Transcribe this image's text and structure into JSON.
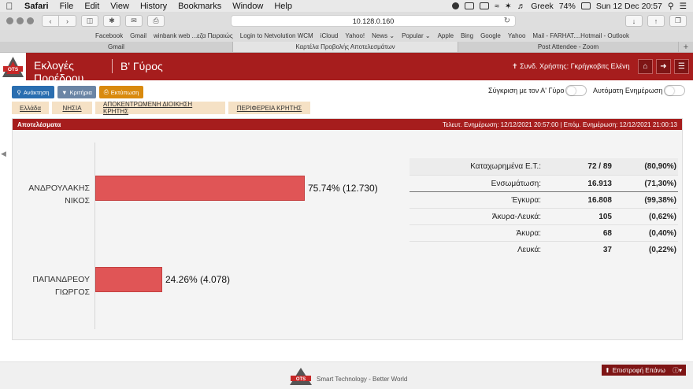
{
  "menubar": {
    "app_name": "Safari",
    "items": [
      "File",
      "Edit",
      "View",
      "History",
      "Bookmarks",
      "Window",
      "Help"
    ],
    "input_source": "Greek",
    "battery": "74%",
    "clock": "Sun 12 Dec  20:57"
  },
  "browser": {
    "url": "10.128.0.160",
    "bookmarks": [
      "Facebook",
      "Gmail",
      "winbank web ...εζα Πειραιώς",
      "Login to Netvolution WCM",
      "iCloud",
      "Yahoo!",
      "News ⌄",
      "Popular ⌄",
      "Apple",
      "Bing",
      "Google",
      "Yahoo",
      "Mail - FARHAT....Hotmail - Outlook"
    ],
    "tabs": [
      {
        "label": "Gmail",
        "active": false
      },
      {
        "label": "Καρτέλα Προβολής Αποτελεσμάτων",
        "active": true
      },
      {
        "label": "Post Attendee - Zoom",
        "active": false
      }
    ]
  },
  "header": {
    "logo_text": "OTS",
    "title": "Εκλογές Προέδρου",
    "round": "Β' Γύρος",
    "user": "Συνδ. Χρήστης: Γκρήγκοβιτς Ελένη",
    "colors": {
      "brand": "#a61d1d",
      "dark": "#7e1515"
    }
  },
  "toolbar": {
    "search_label": "Ανάκτηση",
    "criteria_label": "Κριτήρια",
    "print_label": "Εκτύπωση",
    "compare_label": "Σύγκριση με τον Α' Γύρο",
    "auto_update_label": "Αυτόματη Ενημέρωση"
  },
  "regions": [
    "Ελλάδα",
    "ΝΗΣΙΑ",
    "ΑΠΟΚΕΝΤΡΩΜΕΝΗ ΔΙΟΙΚΗΣΗ ΚΡΗΤΗΣ",
    "ΠΕΡΙΦΕΡΕΙΑ ΚΡΗΤΗΣ"
  ],
  "results": {
    "title": "Αποτελέσματα",
    "last_update": "Τελευτ. Ενημέρωση: 12/12/2021 20:57:00",
    "next_update": "Επόμ. Ενημέρωση: 12/12/2021 21:00:13",
    "separator": "|"
  },
  "chart_data": {
    "type": "bar",
    "orientation": "horizontal",
    "categories": [
      "ΑΝΔΡΟΥΛΑΚΗΣ ΝΙΚΟΣ",
      "ΠΑΠΑΝΔΡΕΟΥ ΓΙΩΡΓΟΣ"
    ],
    "values": [
      75.74,
      24.26
    ],
    "votes": [
      12730,
      4078
    ],
    "data_labels": [
      "75.74% (12.730)",
      "24.26% (4.078)"
    ],
    "xlim": [
      0,
      100
    ],
    "bar_color": "#e05556"
  },
  "stats": [
    {
      "label": "Καταχωρημένα Ε.Τ.:",
      "value": "72 / 89",
      "pct": "(80,90%)"
    },
    {
      "label": "Ενσωμάτωση:",
      "value": "16.913",
      "pct": "(71,30%)"
    },
    {
      "label": "Έγκυρα:",
      "value": "16.808",
      "pct": "(99,38%)"
    },
    {
      "label": "Άκυρα-Λευκά:",
      "value": "105",
      "pct": "(0,62%)"
    },
    {
      "label": "Άκυρα:",
      "value": "68",
      "pct": "(0,40%)"
    },
    {
      "label": "Λευκά:",
      "value": "37",
      "pct": "(0,22%)"
    }
  ],
  "footer": {
    "tagline": "Smart Technology - Better World",
    "back_to_top": "Επιστροφή Επάνω"
  }
}
